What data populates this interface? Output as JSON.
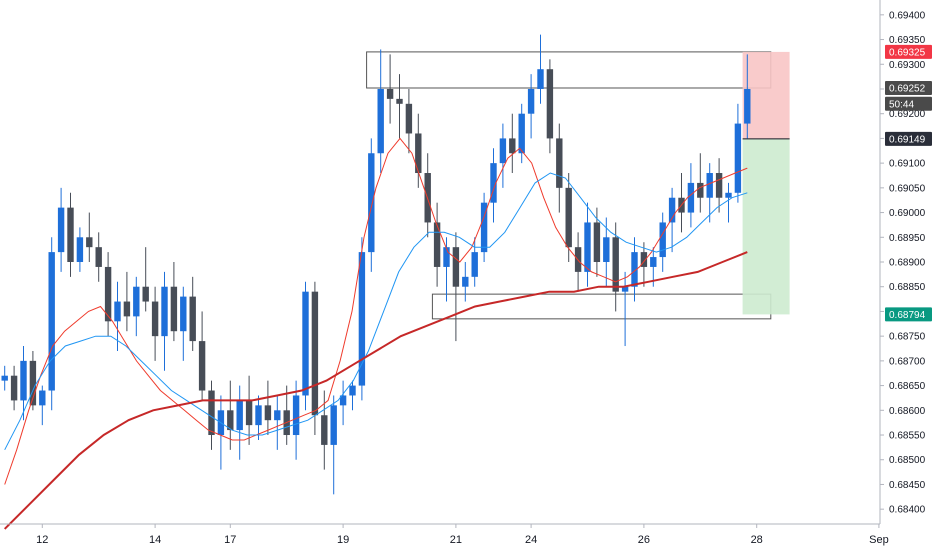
{
  "chart_data": {
    "type": "candlestick",
    "title": "",
    "xlabel": "",
    "ylabel": "",
    "ylim": [
      0.6837,
      0.6943
    ],
    "grid": false,
    "y_ticks": [
      "0.69400",
      "0.69350",
      "0.69300",
      "0.69250",
      "0.69200",
      "0.69150",
      "0.69100",
      "0.69050",
      "0.69000",
      "0.68950",
      "0.68900",
      "0.68850",
      "0.68800",
      "0.68750",
      "0.68700",
      "0.68650",
      "0.68600",
      "0.68550",
      "0.68500",
      "0.68450",
      "0.68400"
    ],
    "x_ticks": [
      {
        "label": "12",
        "bar": 4
      },
      {
        "label": "14",
        "bar": 16
      },
      {
        "label": "17",
        "bar": 24
      },
      {
        "label": "19",
        "bar": 36
      },
      {
        "label": "21",
        "bar": 48
      },
      {
        "label": "24",
        "bar": 56
      },
      {
        "label": "26",
        "bar": 68
      },
      {
        "label": "28",
        "bar": 80
      },
      {
        "label": "Sep",
        "bar": 93
      }
    ],
    "price_labels": [
      {
        "value": "0.69325",
        "price": 0.69325,
        "bg": "#f23645",
        "fg": "#ffffff"
      },
      {
        "value": "0.69252",
        "price": 0.69252,
        "bg": "#4a4a4a",
        "fg": "#ffffff"
      },
      {
        "value": "50:44",
        "price": 0.6922,
        "bg": "#4a4a4a",
        "fg": "#ffffff"
      },
      {
        "value": "0.69149",
        "price": 0.69149,
        "bg": "#2a2e39",
        "fg": "#ffffff"
      },
      {
        "value": "0.68794",
        "price": 0.68794,
        "bg": "#089981",
        "fg": "#ffffff"
      }
    ],
    "candles": [
      [
        0.6866,
        0.6869,
        0.6864,
        0.6867
      ],
      [
        0.6867,
        0.6869,
        0.686,
        0.6862
      ],
      [
        0.6862,
        0.6873,
        0.6858,
        0.687
      ],
      [
        0.687,
        0.6872,
        0.686,
        0.6861
      ],
      [
        0.6861,
        0.6865,
        0.6857,
        0.6864
      ],
      [
        0.6864,
        0.6895,
        0.686,
        0.6892
      ],
      [
        0.6892,
        0.6905,
        0.6888,
        0.6901
      ],
      [
        0.6901,
        0.6904,
        0.6887,
        0.689
      ],
      [
        0.689,
        0.6897,
        0.6888,
        0.6895
      ],
      [
        0.6895,
        0.69,
        0.689,
        0.6893
      ],
      [
        0.6893,
        0.6896,
        0.6886,
        0.6889
      ],
      [
        0.6889,
        0.6892,
        0.6875,
        0.6878
      ],
      [
        0.6878,
        0.6886,
        0.6872,
        0.6882
      ],
      [
        0.6882,
        0.6888,
        0.6876,
        0.6879
      ],
      [
        0.6879,
        0.6887,
        0.6875,
        0.6885
      ],
      [
        0.6885,
        0.6893,
        0.688,
        0.6882
      ],
      [
        0.6882,
        0.6885,
        0.687,
        0.6875
      ],
      [
        0.6875,
        0.6888,
        0.6868,
        0.6885
      ],
      [
        0.6885,
        0.689,
        0.6874,
        0.6876
      ],
      [
        0.6876,
        0.6885,
        0.687,
        0.6883
      ],
      [
        0.6883,
        0.6887,
        0.6872,
        0.6874
      ],
      [
        0.6874,
        0.688,
        0.6862,
        0.6864
      ],
      [
        0.6864,
        0.6866,
        0.6852,
        0.6855
      ],
      [
        0.6855,
        0.6863,
        0.6848,
        0.686
      ],
      [
        0.686,
        0.6866,
        0.6852,
        0.6856
      ],
      [
        0.6856,
        0.6865,
        0.685,
        0.6862
      ],
      [
        0.6862,
        0.6867,
        0.6853,
        0.6857
      ],
      [
        0.6857,
        0.6863,
        0.6854,
        0.6861
      ],
      [
        0.6861,
        0.6866,
        0.6855,
        0.6858
      ],
      [
        0.6858,
        0.6863,
        0.6852,
        0.686
      ],
      [
        0.686,
        0.6865,
        0.6853,
        0.6855
      ],
      [
        0.6855,
        0.6866,
        0.685,
        0.6863
      ],
      [
        0.6863,
        0.6886,
        0.686,
        0.6884
      ],
      [
        0.6884,
        0.6886,
        0.6855,
        0.6859
      ],
      [
        0.6859,
        0.6864,
        0.6848,
        0.6853
      ],
      [
        0.6853,
        0.6863,
        0.6843,
        0.6861
      ],
      [
        0.6861,
        0.6866,
        0.6857,
        0.6863
      ],
      [
        0.6863,
        0.6866,
        0.686,
        0.6865
      ],
      [
        0.6865,
        0.6895,
        0.6862,
        0.6892
      ],
      [
        0.6892,
        0.6915,
        0.6888,
        0.6912
      ],
      [
        0.6912,
        0.6933,
        0.6908,
        0.6925
      ],
      [
        0.6925,
        0.6932,
        0.6918,
        0.6923
      ],
      [
        0.6923,
        0.6928,
        0.6915,
        0.6922
      ],
      [
        0.6922,
        0.6925,
        0.6912,
        0.6916
      ],
      [
        0.6916,
        0.692,
        0.6905,
        0.6908
      ],
      [
        0.6908,
        0.6912,
        0.6895,
        0.6898
      ],
      [
        0.6898,
        0.6902,
        0.6885,
        0.6889
      ],
      [
        0.6889,
        0.6895,
        0.6882,
        0.6893
      ],
      [
        0.6893,
        0.6896,
        0.6874,
        0.6885
      ],
      [
        0.6885,
        0.689,
        0.6882,
        0.6887
      ],
      [
        0.6887,
        0.6895,
        0.6885,
        0.6892
      ],
      [
        0.6892,
        0.6904,
        0.689,
        0.6902
      ],
      [
        0.6902,
        0.6913,
        0.6898,
        0.691
      ],
      [
        0.691,
        0.6918,
        0.6905,
        0.6915
      ],
      [
        0.6915,
        0.692,
        0.6908,
        0.6912
      ],
      [
        0.6912,
        0.6922,
        0.691,
        0.692
      ],
      [
        0.692,
        0.6928,
        0.6915,
        0.6925
      ],
      [
        0.6925,
        0.6936,
        0.6922,
        0.6929
      ],
      [
        0.6929,
        0.6931,
        0.6912,
        0.6915
      ],
      [
        0.6915,
        0.6918,
        0.69,
        0.6905
      ],
      [
        0.6905,
        0.6908,
        0.689,
        0.6893
      ],
      [
        0.6893,
        0.6896,
        0.6884,
        0.6888
      ],
      [
        0.6888,
        0.6902,
        0.6885,
        0.6898
      ],
      [
        0.6898,
        0.6901,
        0.6887,
        0.689
      ],
      [
        0.689,
        0.6899,
        0.6885,
        0.6895
      ],
      [
        0.6895,
        0.6898,
        0.688,
        0.6884
      ],
      [
        0.6884,
        0.6888,
        0.6873,
        0.6885
      ],
      [
        0.6885,
        0.6895,
        0.6882,
        0.6892
      ],
      [
        0.6892,
        0.6894,
        0.6885,
        0.6889
      ],
      [
        0.6889,
        0.6893,
        0.6885,
        0.6891
      ],
      [
        0.6891,
        0.69,
        0.6888,
        0.6898
      ],
      [
        0.6898,
        0.6905,
        0.6892,
        0.6903
      ],
      [
        0.6903,
        0.6908,
        0.6896,
        0.69
      ],
      [
        0.69,
        0.691,
        0.6897,
        0.6906
      ],
      [
        0.6906,
        0.6912,
        0.69,
        0.6903
      ],
      [
        0.6903,
        0.691,
        0.6898,
        0.6908
      ],
      [
        0.6908,
        0.6911,
        0.69,
        0.6903
      ],
      [
        0.6903,
        0.6906,
        0.6898,
        0.6904
      ],
      [
        0.6904,
        0.6922,
        0.6902,
        0.6918
      ],
      [
        0.6918,
        0.6932,
        0.6915,
        0.6925
      ]
    ],
    "series": [
      {
        "name": "",
        "color": "#ef3b2c",
        "values": [
          0.6845,
          0.6852,
          0.686,
          0.6867,
          0.6873,
          0.6876,
          0.6878,
          0.688,
          0.6881,
          0.6878,
          0.6874,
          0.687,
          0.6867,
          0.6864,
          0.6862,
          0.686,
          0.6858,
          0.6856,
          0.6855,
          0.6854,
          0.6854,
          0.6855,
          0.6856,
          0.6857,
          0.6858,
          0.6859,
          0.686,
          0.6862,
          0.687,
          0.688,
          0.6895,
          0.6905,
          0.6912,
          0.6915,
          0.6912,
          0.6905,
          0.6898,
          0.6892,
          0.689,
          0.6893,
          0.6899,
          0.6906,
          0.6911,
          0.6913,
          0.691,
          0.6903,
          0.6897,
          0.6893,
          0.689,
          0.6888,
          0.6887,
          0.6886,
          0.6887,
          0.6889,
          0.6892,
          0.6896,
          0.69,
          0.6903,
          0.6905,
          0.6906,
          0.6907,
          0.6908,
          0.6909
        ]
      },
      {
        "name": "",
        "color": "#2196f3",
        "values": [
          0.6852,
          0.6858,
          0.6865,
          0.687,
          0.6873,
          0.6874,
          0.6875,
          0.6875,
          0.6873,
          0.687,
          0.6867,
          0.6864,
          0.6862,
          0.686,
          0.6858,
          0.6856,
          0.6855,
          0.6855,
          0.6856,
          0.6857,
          0.6858,
          0.686,
          0.6862,
          0.6866,
          0.6872,
          0.688,
          0.6888,
          0.6893,
          0.6896,
          0.6896,
          0.6895,
          0.6893,
          0.6893,
          0.6896,
          0.6901,
          0.6906,
          0.6908,
          0.6907,
          0.6903,
          0.6899,
          0.6896,
          0.6894,
          0.6893,
          0.6892,
          0.6893,
          0.6895,
          0.6898,
          0.6901,
          0.6903,
          0.6904
        ]
      },
      {
        "name": "",
        "color": "#c62828",
        "values": [
          0.6836,
          0.6841,
          0.6846,
          0.6851,
          0.6855,
          0.6858,
          0.686,
          0.6861,
          0.6862,
          0.6862,
          0.6862,
          0.6863,
          0.6864,
          0.6866,
          0.6869,
          0.6872,
          0.6875,
          0.6877,
          0.6879,
          0.6881,
          0.6882,
          0.6883,
          0.6884,
          0.6884,
          0.6885,
          0.6885,
          0.6886,
          0.6887,
          0.6888,
          0.689,
          0.6892
        ]
      }
    ],
    "zones": [
      {
        "name": "upper-range",
        "from_bar": 39,
        "to_bar": 82,
        "price_top": 0.69325,
        "price_bottom": 0.69252,
        "outer_top": 0.6933,
        "color": "#555555"
      },
      {
        "name": "lower-range",
        "from_bar": 46,
        "to_bar": 82,
        "price_top": 0.68835,
        "price_bottom": 0.68785,
        "color": "#555555"
      },
      {
        "name": "stop-loss-zone",
        "from_bar": 79,
        "to_bar": 84,
        "price_top": 0.69325,
        "price_bottom": 0.69149,
        "color": "#f8c5c5"
      },
      {
        "name": "take-profit-zone",
        "from_bar": 79,
        "to_bar": 84,
        "price_top": 0.69149,
        "price_bottom": 0.68794,
        "color": "#cdebcf"
      }
    ],
    "up_color": "#1e6fd9",
    "down_color": "#474d57"
  }
}
